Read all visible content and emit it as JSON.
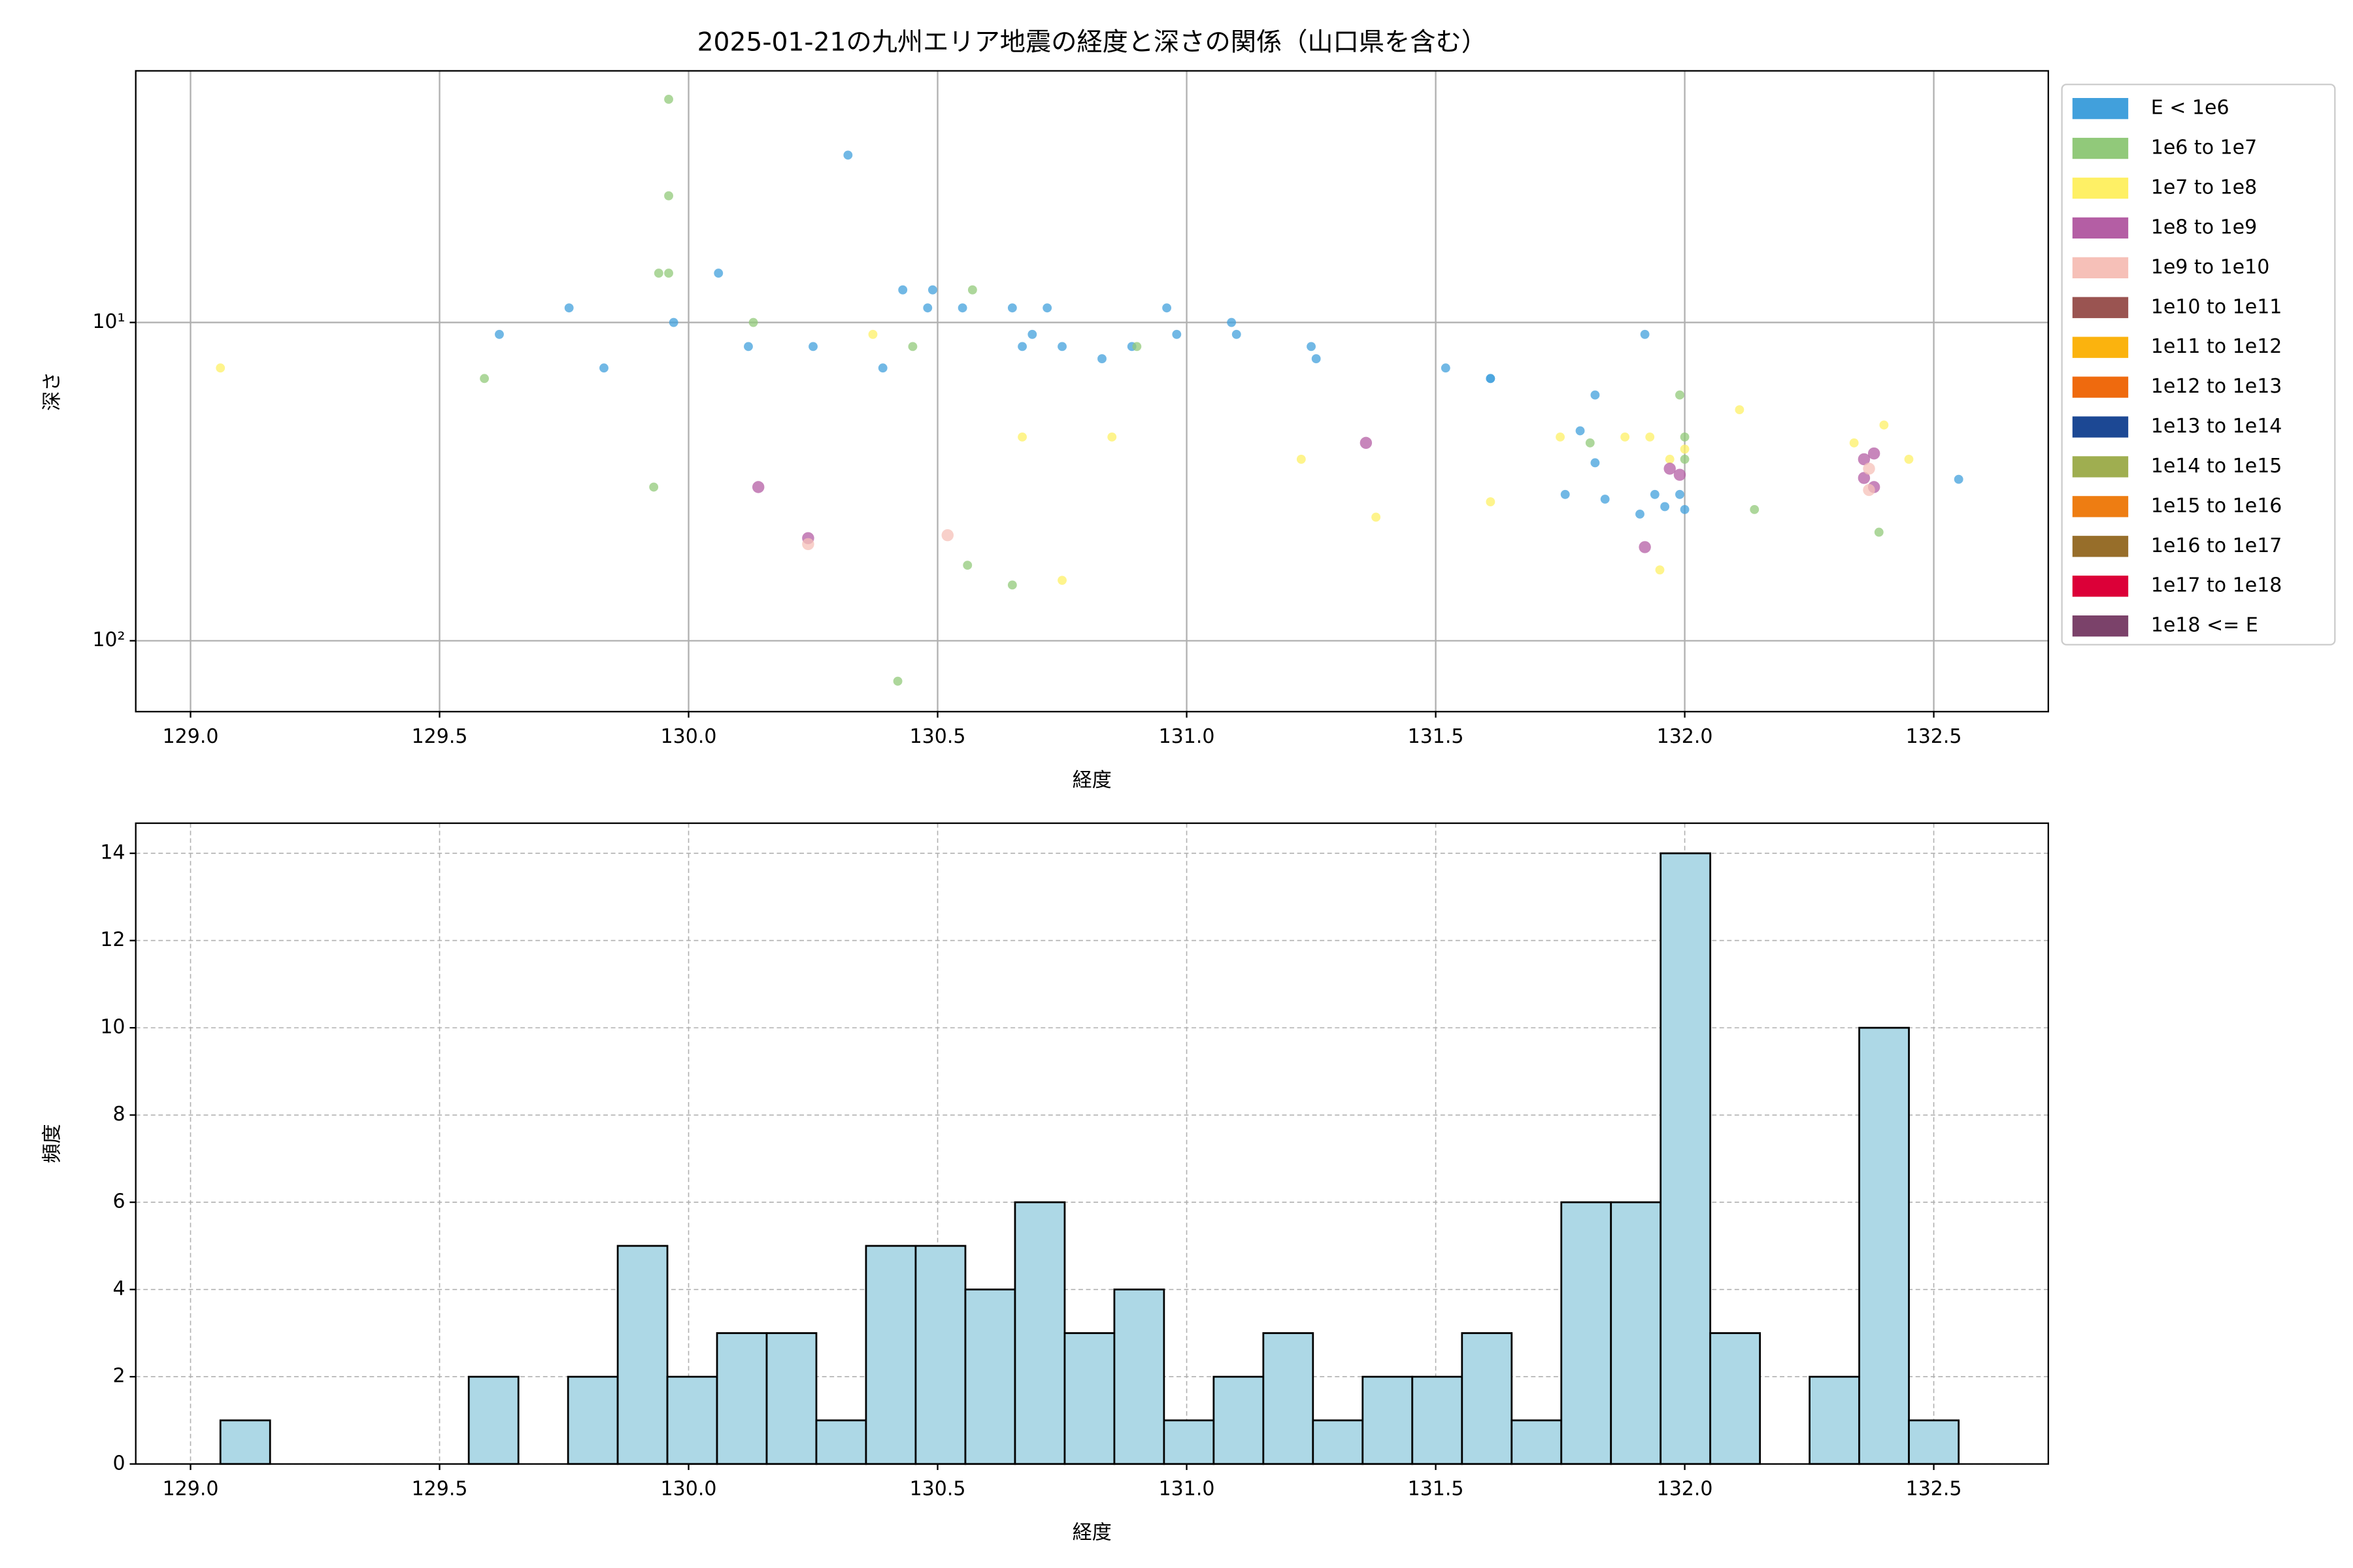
{
  "chart_data": [
    {
      "type": "scatter",
      "title": "2025-01-21の九州エリア地震の経度と深さの関係（山口県を含む）",
      "xlabel": "経度",
      "ylabel": "深さ",
      "xlim": [
        128.89,
        132.73
      ],
      "xticks": [
        {
          "value": 129,
          "label": "129.0"
        },
        {
          "value": 129.5,
          "label": "129.5"
        },
        {
          "value": 130,
          "label": "130.0"
        },
        {
          "value": 130.5,
          "label": "130.5"
        },
        {
          "value": 131,
          "label": "131.0"
        },
        {
          "value": 131.5,
          "label": "131.5"
        },
        {
          "value": 132,
          "label": "132.0"
        },
        {
          "value": 132.5,
          "label": "132.5"
        }
      ],
      "ylim": [
        1.62,
        167
      ],
      "ylog": true,
      "y_inverted": true,
      "yticks": [
        {
          "value": 10,
          "label": "10¹"
        },
        {
          "value": 100,
          "label": "10²"
        }
      ],
      "grid": true,
      "grid_style": "solid",
      "legend": "outside upper right",
      "series": [
        {
          "name": "E < 1e6",
          "color": "#41a0dc",
          "x": [
            129.62,
            129.76,
            129.83,
            129.97,
            130.06,
            130.12,
            130.25,
            130.32,
            130.39,
            130.43,
            130.48,
            130.49,
            130.55,
            130.65,
            130.67,
            130.69,
            130.72,
            130.75,
            130.83,
            130.89,
            130.96,
            130.98,
            131.09,
            131.1,
            131.25,
            131.26,
            131.52,
            131.61,
            131.61,
            131.79,
            131.82,
            131.82,
            131.76,
            131.84,
            131.91,
            131.92,
            131.94,
            131.96,
            131.99,
            132.0,
            132.55
          ],
          "values": [
            10.9,
            9.0,
            13.9,
            10,
            7.0,
            11.9,
            11.9,
            2.98,
            13.9,
            7.9,
            9.0,
            7.9,
            9.0,
            9.0,
            11.9,
            10.9,
            9.0,
            11.9,
            13.0,
            11.9,
            9.0,
            10.9,
            10,
            10.9,
            11.9,
            13.0,
            13.9,
            15.0,
            15.0,
            21.9,
            16.9,
            27.6,
            34.7,
            35.9,
            40.0,
            10.9,
            34.7,
            37.9,
            34.7,
            38.7,
            31.1
          ]
        },
        {
          "name": "1e6 to 1e7",
          "color": "#91c97a",
          "x": [
            129.96,
            129.96,
            129.94,
            129.96,
            129.59,
            129.93,
            130.13,
            130.45,
            130.57,
            130.9,
            130.56,
            130.65,
            130.42,
            131.81,
            131.99,
            132.0,
            132.0,
            132.14,
            132.39
          ],
          "values": [
            1.99,
            4.0,
            7.0,
            7.0,
            15.0,
            32.9,
            10,
            11.9,
            7.9,
            11.9,
            57.9,
            66.8,
            134,
            23.9,
            16.9,
            22.9,
            26.9,
            38.7,
            45.6
          ]
        },
        {
          "name": "1e7 to 1e8",
          "color": "#fef065",
          "x": [
            129.06,
            130.37,
            130.67,
            130.85,
            131.23,
            131.38,
            131.61,
            131.75,
            131.88,
            131.93,
            131.95,
            131.97,
            132.0,
            132.11,
            132.34,
            132.4,
            132.45,
            130.75
          ],
          "values": [
            13.9,
            10.9,
            22.9,
            22.9,
            26.9,
            40.9,
            36.6,
            22.9,
            22.9,
            22.9,
            59.9,
            26.9,
            25.0,
            18.8,
            23.9,
            21.0,
            26.9,
            64.6
          ]
        },
        {
          "name": "1e8 to 1e9",
          "color": "#b45ea4",
          "x": [
            130.14,
            130.24,
            131.36,
            131.92,
            131.97,
            131.99,
            132.36,
            132.38,
            132.36,
            132.38
          ],
          "values": [
            32.9,
            47.6,
            23.9,
            50.8,
            28.8,
            30.1,
            26.9,
            25.8,
            30.8,
            32.9
          ]
        },
        {
          "name": "1e9 to 1e10",
          "color": "#f6c0b8",
          "x": [
            130.24,
            130.52,
            132.37,
            132.37
          ],
          "values": [
            49.7,
            46.6,
            33.6,
            28.8
          ]
        },
        {
          "name": "1e10 to 1e11",
          "color": "#9a5451",
          "x": [],
          "values": []
        },
        {
          "name": "1e11 to 1e12",
          "color": "#fbb30e",
          "x": [],
          "values": []
        },
        {
          "name": "1e12 to 1e13",
          "color": "#ef6a0e",
          "x": [],
          "values": []
        },
        {
          "name": "1e13 to 1e14",
          "color": "#1c4894",
          "x": [],
          "values": []
        },
        {
          "name": "1e14 to 1e15",
          "color": "#9fae50",
          "x": [],
          "values": []
        },
        {
          "name": "1e15 to 1e16",
          "color": "#ee7d12",
          "x": [],
          "values": []
        },
        {
          "name": "1e16 to 1e17",
          "color": "#976e2a",
          "x": [],
          "values": []
        },
        {
          "name": "1e17 to 1e18",
          "color": "#dc0038",
          "x": [],
          "values": []
        },
        {
          "name": "1e18 <= E",
          "color": "#7b426a",
          "x": [],
          "values": []
        }
      ]
    },
    {
      "type": "histogram",
      "xlabel": "経度",
      "ylabel": "頻度",
      "xlim": [
        128.89,
        132.73
      ],
      "xticks": [
        {
          "value": 129,
          "label": "129.0"
        },
        {
          "value": 129.5,
          "label": "129.5"
        },
        {
          "value": 130,
          "label": "130.0"
        },
        {
          "value": 130.5,
          "label": "130.5"
        },
        {
          "value": 131,
          "label": "131.0"
        },
        {
          "value": 131.5,
          "label": "131.5"
        },
        {
          "value": 132,
          "label": "132.0"
        },
        {
          "value": 132.5,
          "label": "132.5"
        }
      ],
      "ylim": [
        0,
        14.69
      ],
      "yticks": [
        0,
        2,
        4,
        6,
        8,
        10,
        12,
        14
      ],
      "grid": true,
      "grid_style": "dashed",
      "color": "#add8e6",
      "edgecolor": "#000000",
      "bins": [
        129.06,
        129.1597,
        129.2594,
        129.3591,
        129.4588,
        129.5586,
        129.6583,
        129.758,
        129.8577,
        129.9574,
        130.0571,
        130.1568,
        130.2565,
        130.3562,
        130.4559,
        130.5557,
        130.6554,
        130.7551,
        130.8548,
        130.9545,
        131.0542,
        131.1539,
        131.2536,
        131.3533,
        131.453,
        131.5528,
        131.6525,
        131.7522,
        131.8519,
        131.9516,
        132.0513,
        132.151,
        132.2507,
        132.3504,
        132.4501,
        132.55
      ],
      "counts": [
        1,
        0,
        0,
        0,
        0,
        2,
        0,
        2,
        5,
        2,
        3,
        3,
        1,
        5,
        5,
        4,
        6,
        3,
        4,
        1,
        2,
        3,
        1,
        2,
        2,
        3,
        1,
        6,
        6,
        14,
        3,
        0,
        2,
        10,
        1
      ]
    }
  ]
}
